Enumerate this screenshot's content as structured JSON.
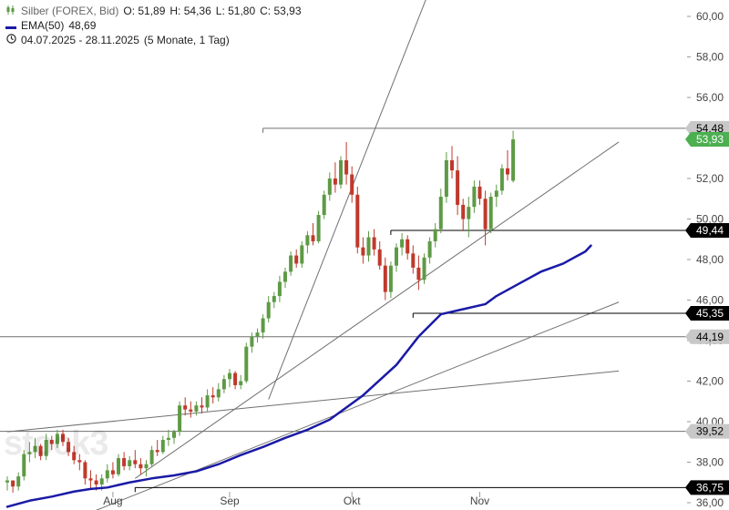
{
  "legend": {
    "instrument_icon": "candlestick-icon",
    "instrument": "Silber (FOREX, Bid)",
    "open": "O: 51,89",
    "high": "H: 54,36",
    "low": "L: 51,80",
    "close": "C: 53,93",
    "ema_label": "EMA(50)",
    "ema_value": "48,69",
    "period_icon": "clock-icon",
    "period_range": "04.07.2025 - 28.11.2025",
    "period_desc": "(5 Monate, 1 Tag)"
  },
  "watermark": "stock3",
  "colors": {
    "up": "#5e9a45",
    "down": "#c0392b",
    "ema": "#1a1aa6",
    "line": "#707070",
    "current": "#4caf50"
  },
  "chart_data": {
    "type": "candlestick",
    "ylim": [
      36,
      60.6
    ],
    "y_ticks": [
      36,
      38,
      40,
      42,
      44,
      46,
      48,
      50,
      52,
      54,
      56,
      58,
      60
    ],
    "y_tick_labels": [
      "36,00",
      "38,00",
      "40,00",
      "42,00",
      "44,00",
      "46,00",
      "48,00",
      "50,00",
      "52,00",
      "54,00",
      "56,00",
      "58,00",
      "60,00"
    ],
    "x_labels": [
      {
        "label": "Aug",
        "index": 19
      },
      {
        "label": "Sep",
        "index": 40
      },
      {
        "label": "Okt",
        "index": 62
      },
      {
        "label": "Nov",
        "index": 85
      }
    ],
    "candles": [
      [
        37.0,
        37.3,
        36.6,
        37.1
      ],
      [
        37.1,
        37.0,
        36.5,
        36.8
      ],
      [
        36.8,
        37.5,
        36.6,
        37.3
      ],
      [
        37.3,
        38.6,
        37.1,
        38.4
      ],
      [
        38.4,
        39.0,
        38.0,
        38.5
      ],
      [
        38.5,
        39.2,
        38.2,
        38.8
      ],
      [
        38.8,
        38.9,
        38.1,
        38.3
      ],
      [
        38.3,
        39.4,
        38.1,
        39.1
      ],
      [
        39.1,
        39.3,
        38.6,
        38.9
      ],
      [
        38.9,
        39.6,
        38.7,
        39.4
      ],
      [
        39.4,
        39.6,
        38.8,
        39.0
      ],
      [
        39.0,
        39.2,
        38.3,
        38.5
      ],
      [
        38.5,
        38.8,
        37.9,
        38.1
      ],
      [
        38.1,
        38.4,
        37.6,
        38.0
      ],
      [
        38.0,
        38.1,
        36.9,
        37.2
      ],
      [
        37.2,
        37.6,
        36.7,
        37.1
      ],
      [
        37.1,
        37.4,
        36.6,
        36.9
      ],
      [
        36.9,
        37.4,
        36.6,
        37.2
      ],
      [
        37.2,
        37.9,
        37.0,
        37.6
      ],
      [
        37.6,
        38.0,
        37.2,
        37.4
      ],
      [
        37.4,
        38.4,
        37.3,
        38.2
      ],
      [
        38.2,
        38.5,
        37.6,
        37.8
      ],
      [
        37.8,
        38.3,
        37.6,
        38.1
      ],
      [
        38.1,
        38.6,
        37.7,
        37.9
      ],
      [
        37.9,
        38.2,
        37.4,
        37.7
      ],
      [
        37.7,
        38.1,
        37.3,
        37.9
      ],
      [
        37.9,
        38.8,
        37.8,
        38.6
      ],
      [
        38.6,
        39.1,
        38.3,
        38.5
      ],
      [
        38.5,
        39.3,
        38.4,
        39.1
      ],
      [
        39.1,
        39.6,
        38.8,
        39.2
      ],
      [
        39.2,
        39.6,
        38.9,
        39.5
      ],
      [
        39.5,
        41.0,
        39.3,
        40.8
      ],
      [
        40.8,
        41.2,
        40.3,
        40.6
      ],
      [
        40.6,
        41.0,
        40.2,
        40.5
      ],
      [
        40.5,
        41.0,
        40.3,
        40.8
      ],
      [
        40.8,
        41.2,
        40.4,
        40.7
      ],
      [
        40.7,
        41.6,
        40.5,
        41.3
      ],
      [
        41.3,
        41.7,
        40.9,
        41.2
      ],
      [
        41.2,
        41.9,
        41.0,
        41.6
      ],
      [
        41.6,
        42.3,
        41.4,
        42.1
      ],
      [
        42.1,
        42.6,
        41.7,
        42.4
      ],
      [
        42.4,
        42.5,
        41.6,
        41.8
      ],
      [
        41.8,
        42.3,
        41.6,
        42.0
      ],
      [
        42.0,
        43.9,
        41.9,
        43.7
      ],
      [
        43.7,
        44.4,
        43.4,
        44.2
      ],
      [
        44.2,
        44.6,
        43.9,
        44.4
      ],
      [
        44.4,
        45.3,
        44.1,
        45.1
      ],
      [
        45.1,
        46.2,
        44.9,
        45.9
      ],
      [
        45.9,
        46.4,
        45.6,
        46.2
      ],
      [
        46.2,
        47.2,
        45.9,
        46.9
      ],
      [
        46.9,
        47.6,
        46.6,
        47.4
      ],
      [
        47.4,
        48.4,
        47.2,
        48.2
      ],
      [
        48.2,
        48.5,
        47.6,
        47.8
      ],
      [
        47.8,
        48.9,
        47.6,
        48.7
      ],
      [
        48.7,
        49.4,
        48.3,
        49.2
      ],
      [
        49.2,
        49.8,
        48.7,
        48.9
      ],
      [
        48.9,
        50.4,
        48.8,
        50.2
      ],
      [
        50.2,
        51.4,
        50.0,
        51.2
      ],
      [
        51.2,
        52.3,
        50.9,
        52.0
      ],
      [
        52.0,
        52.8,
        51.3,
        51.7
      ],
      [
        51.7,
        53.1,
        51.5,
        52.9
      ],
      [
        52.9,
        53.8,
        51.7,
        52.2
      ],
      [
        52.2,
        52.6,
        50.8,
        51.2
      ],
      [
        51.2,
        51.6,
        48.3,
        48.6
      ],
      [
        48.6,
        49.1,
        47.8,
        48.2
      ],
      [
        48.2,
        49.4,
        47.9,
        49.1
      ],
      [
        49.1,
        49.5,
        48.2,
        48.5
      ],
      [
        48.5,
        48.9,
        47.5,
        47.7
      ],
      [
        47.7,
        48.1,
        46.0,
        46.4
      ],
      [
        46.4,
        47.9,
        46.1,
        47.7
      ],
      [
        47.7,
        48.8,
        47.4,
        48.6
      ],
      [
        48.6,
        49.3,
        48.2,
        49.0
      ],
      [
        49.0,
        49.2,
        48.0,
        48.3
      ],
      [
        48.3,
        48.7,
        47.3,
        47.6
      ],
      [
        47.6,
        48.2,
        46.5,
        47.0
      ],
      [
        47.0,
        48.3,
        46.8,
        48.1
      ],
      [
        48.1,
        49.1,
        47.8,
        48.9
      ],
      [
        48.9,
        49.8,
        48.6,
        49.5
      ],
      [
        49.5,
        51.5,
        49.3,
        51.1
      ],
      [
        51.1,
        53.3,
        50.8,
        52.9
      ],
      [
        52.9,
        53.6,
        52.0,
        52.4
      ],
      [
        52.4,
        53.1,
        50.2,
        50.7
      ],
      [
        50.7,
        51.0,
        49.4,
        50.0
      ],
      [
        50.0,
        51.1,
        49.1,
        50.6
      ],
      [
        50.6,
        51.9,
        50.3,
        51.6
      ],
      [
        51.6,
        51.9,
        50.7,
        51.0
      ],
      [
        51.0,
        51.4,
        48.7,
        49.5
      ],
      [
        49.5,
        51.3,
        49.3,
        51.1
      ],
      [
        51.1,
        51.7,
        50.6,
        51.4
      ],
      [
        51.4,
        52.7,
        51.2,
        52.5
      ],
      [
        52.5,
        53.4,
        51.9,
        52.2
      ],
      [
        51.89,
        54.36,
        51.8,
        53.93
      ]
    ],
    "ema": {
      "name": "EMA(50)",
      "points": [
        [
          0,
          35.8
        ],
        [
          4,
          36.1
        ],
        [
          8,
          36.3
        ],
        [
          12,
          36.55
        ],
        [
          15,
          36.68
        ],
        [
          18,
          36.75
        ],
        [
          22,
          37.0
        ],
        [
          26,
          37.2
        ],
        [
          30,
          37.35
        ],
        [
          34,
          37.55
        ],
        [
          38,
          37.9
        ],
        [
          42,
          38.35
        ],
        [
          46,
          38.75
        ],
        [
          50,
          39.2
        ],
        [
          54,
          39.6
        ],
        [
          58,
          40.1
        ],
        [
          60,
          40.5
        ],
        [
          64,
          41.3
        ],
        [
          68,
          42.3
        ],
        [
          70,
          42.8
        ],
        [
          74,
          44.2
        ],
        [
          78,
          45.3
        ],
        [
          82,
          45.55
        ],
        [
          86,
          45.8
        ],
        [
          88,
          46.2
        ],
        [
          92,
          46.8
        ],
        [
          96,
          47.4
        ],
        [
          100,
          47.8
        ],
        [
          104,
          48.4
        ],
        [
          105,
          48.69
        ]
      ]
    },
    "horizontal_levels": [
      {
        "value": 54.48,
        "label": "54,48",
        "style": "gray",
        "from_index": 46
      },
      {
        "value": 53.93,
        "label": "53,93",
        "style": "current"
      },
      {
        "value": 49.44,
        "label": "49,44",
        "style": "black",
        "from_index": 69
      },
      {
        "value": 45.35,
        "label": "45,35",
        "style": "black",
        "from_index": 73
      },
      {
        "value": 44.19,
        "label": "44,19",
        "style": "gray",
        "from_index": 0
      },
      {
        "value": 39.52,
        "label": "39,52",
        "style": "gray",
        "from_index": 0
      },
      {
        "value": 36.75,
        "label": "36,75",
        "style": "black",
        "from_index": 23
      }
    ],
    "trend_lines": [
      {
        "from": [
          0,
          39.5
        ],
        "to": [
          110,
          42.5
        ]
      },
      {
        "from": [
          13,
          35.3
        ],
        "to": [
          110,
          45.9
        ]
      },
      {
        "from": [
          23,
          37.2
        ],
        "to": [
          110,
          53.8
        ]
      },
      {
        "from": [
          47,
          41.1
        ],
        "to": [
          82,
          65.5
        ]
      }
    ]
  }
}
